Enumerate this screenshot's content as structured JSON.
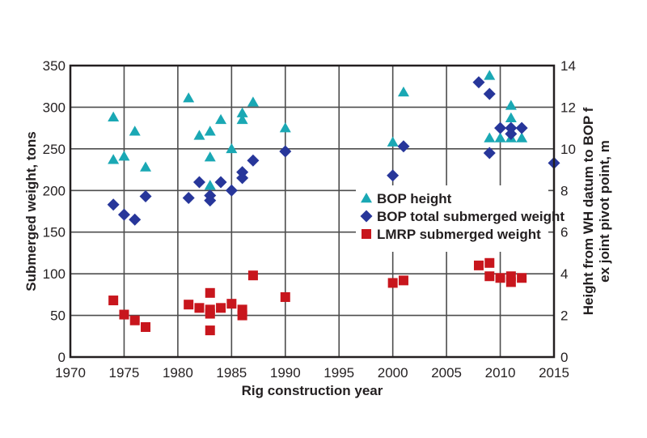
{
  "chart_data": {
    "type": "scatter",
    "title": "",
    "xlabel": "Rig construction year",
    "ylabel": "Submerged weight, tons",
    "y2label_line1": "Height from WH datum to BOP f",
    "y2label_line2": "ex joint pivot point, m",
    "xlim": [
      1970,
      2015
    ],
    "ylim": [
      0,
      350
    ],
    "y2lim": [
      0,
      14
    ],
    "xticks": [
      "1970",
      "1975",
      "1980",
      "1985",
      "1990",
      "1995",
      "2000",
      "2005",
      "2010",
      "2015"
    ],
    "yticks": [
      "0",
      "50",
      "100",
      "150",
      "200",
      "250",
      "300",
      "350"
    ],
    "y2ticks": [
      "0",
      "2",
      "4",
      "6",
      "8",
      "10",
      "12",
      "14"
    ],
    "grid": true,
    "legend_position": "center-right",
    "colors": {
      "bop_height": "#1aa8b4",
      "bop_weight": "#27369a",
      "lmrp_weight": "#c8161d",
      "axis": "#231f20",
      "grid": "#4d4d4d"
    },
    "series": [
      {
        "name": "BOP height",
        "marker": "triangle",
        "axis": "right",
        "points": [
          [
            1974,
            9.48
          ],
          [
            1974,
            11.52
          ],
          [
            1975,
            9.64
          ],
          [
            1976,
            10.84
          ],
          [
            1977,
            9.12
          ],
          [
            1981,
            12.44
          ],
          [
            1982,
            10.64
          ],
          [
            1983,
            10.84
          ],
          [
            1983,
            9.6
          ],
          [
            1983,
            8.24
          ],
          [
            1984,
            11.4
          ],
          [
            1985,
            10.0
          ],
          [
            1986,
            11.72
          ],
          [
            1986,
            11.4
          ],
          [
            1987,
            12.24
          ],
          [
            1990,
            11.0
          ],
          [
            2000,
            10.32
          ],
          [
            2001,
            12.72
          ],
          [
            2009,
            13.52
          ],
          [
            2009,
            10.52
          ],
          [
            2010,
            10.52
          ],
          [
            2011,
            12.08
          ],
          [
            2011,
            11.48
          ],
          [
            2011,
            10.52
          ],
          [
            2012,
            10.52
          ]
        ]
      },
      {
        "name": "BOP total submerged weight",
        "marker": "diamond",
        "axis": "left",
        "points": [
          [
            1974,
            183
          ],
          [
            1975,
            171
          ],
          [
            1976,
            165
          ],
          [
            1977,
            193
          ],
          [
            1981,
            191
          ],
          [
            1982,
            210
          ],
          [
            1983,
            194
          ],
          [
            1983,
            188
          ],
          [
            1984,
            210
          ],
          [
            1985,
            200
          ],
          [
            1986,
            222
          ],
          [
            1986,
            215
          ],
          [
            1987,
            236
          ],
          [
            1990,
            247
          ],
          [
            2000,
            218
          ],
          [
            2001,
            253
          ],
          [
            2008,
            330
          ],
          [
            2009,
            316
          ],
          [
            2009,
            245
          ],
          [
            2010,
            275
          ],
          [
            2011,
            275
          ],
          [
            2011,
            268
          ],
          [
            2012,
            275
          ],
          [
            2015,
            233
          ]
        ]
      },
      {
        "name": "LMRP submerged weight",
        "marker": "square",
        "axis": "left",
        "points": [
          [
            1974,
            68
          ],
          [
            1975,
            51
          ],
          [
            1976,
            44
          ],
          [
            1977,
            36
          ],
          [
            1981,
            63
          ],
          [
            1982,
            59
          ],
          [
            1983,
            77
          ],
          [
            1983,
            57
          ],
          [
            1983,
            52
          ],
          [
            1983,
            32
          ],
          [
            1984,
            59
          ],
          [
            1985,
            64
          ],
          [
            1986,
            57
          ],
          [
            1986,
            50
          ],
          [
            1987,
            98
          ],
          [
            1990,
            72
          ],
          [
            2000,
            89
          ],
          [
            2001,
            92
          ],
          [
            2008,
            110
          ],
          [
            2009,
            113
          ],
          [
            2009,
            97
          ],
          [
            2010,
            95
          ],
          [
            2011,
            97
          ],
          [
            2011,
            90
          ],
          [
            2012,
            95
          ]
        ]
      }
    ]
  }
}
